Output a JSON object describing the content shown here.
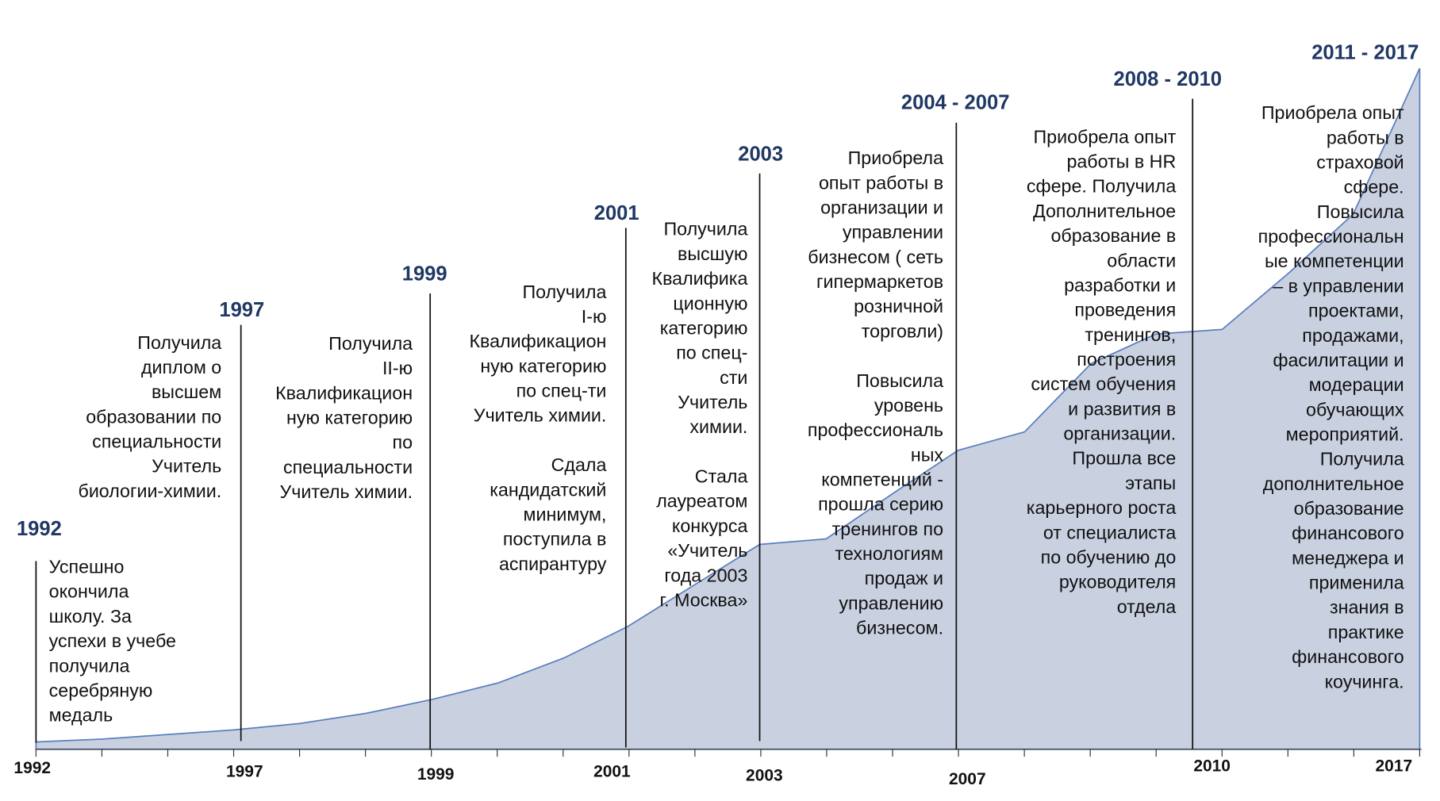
{
  "milestones": [
    {
      "year": "1992",
      "paragraphs": [
        [
          "Успешно",
          "окончила",
          "школу. За",
          "успехи в учебе",
          "получила",
          "серебряную",
          "медаль"
        ]
      ]
    },
    {
      "year": "1997",
      "paragraphs": [
        [
          "Получила",
          "диплом о",
          "высшем",
          "образовании по",
          "специальности",
          "Учитель",
          "биологии-химии."
        ]
      ]
    },
    {
      "year": "1999",
      "paragraphs": [
        [
          "Получила",
          "II-ю",
          "Квалификацион",
          "ную категорию",
          "по",
          "специальности",
          "Учитель химии."
        ]
      ]
    },
    {
      "year": "2001",
      "paragraphs": [
        [
          "Получила",
          "I-ю",
          "Квалификацион",
          "ную категорию",
          "по спец-ти",
          "Учитель химии."
        ],
        [
          "Сдала",
          "кандидатский",
          "минимум,",
          "поступила в",
          "аспирантуру"
        ]
      ]
    },
    {
      "year": "2003",
      "paragraphs": [
        [
          "Получила",
          "высшую",
          "Квалифика",
          "ционную",
          "категорию",
          "по спец-",
          "сти",
          "Учитель",
          "химии."
        ],
        [
          "Стала",
          "лауреатом",
          "конкурса",
          "«Учитель",
          "года 2003",
          "г. Москва»"
        ]
      ]
    },
    {
      "year": "2004 - 2007",
      "paragraphs": [
        [
          "Приобрела",
          "опыт работы в",
          "организации и",
          "управлении",
          "бизнесом ( сеть",
          "гипермаркетов",
          "розничной",
          "торговли)"
        ],
        [
          "Повысила",
          "уровень",
          "профессиональ",
          "ных",
          "компетенций -",
          "прошла  серию",
          "тренингов по",
          "технологиям",
          "продаж и",
          "управлению",
          "бизнесом."
        ]
      ]
    },
    {
      "year": "2008 - 2010",
      "paragraphs": [
        [
          "Приобрела опыт",
          "работы в HR",
          "сфере. Получила",
          "Дополнительное",
          "образование в",
          "области",
          "разработки и",
          "проведения",
          "тренингов,",
          "построения",
          "систем обучения",
          "и развития в",
          "организации.",
          "Прошла все",
          "этапы",
          "карьерного роста",
          "от специалиста",
          "по обучению до",
          "руководителя",
          "отдела"
        ]
      ]
    },
    {
      "year": "2011 - 2017",
      "paragraphs": [
        [
          "Приобрела  опыт",
          "работы в",
          "страховой",
          "сфере.",
          "Повысила",
          "профессиональн",
          "ые компетенции",
          "– в управлении",
          "проектами,",
          "продажами,",
          "фасилитации и",
          "модерации",
          "обучающих",
          "мероприятий.",
          "Получила",
          "дополнительное",
          "образование",
          "финансового",
          "менеджера и",
          "применила",
          "знания в",
          "практике",
          "финансового",
          "коучинга."
        ]
      ]
    }
  ],
  "axis_labels": [
    "1992",
    "1997",
    "1999",
    "2001",
    "2003",
    "2007",
    "2010",
    "2017"
  ]
}
